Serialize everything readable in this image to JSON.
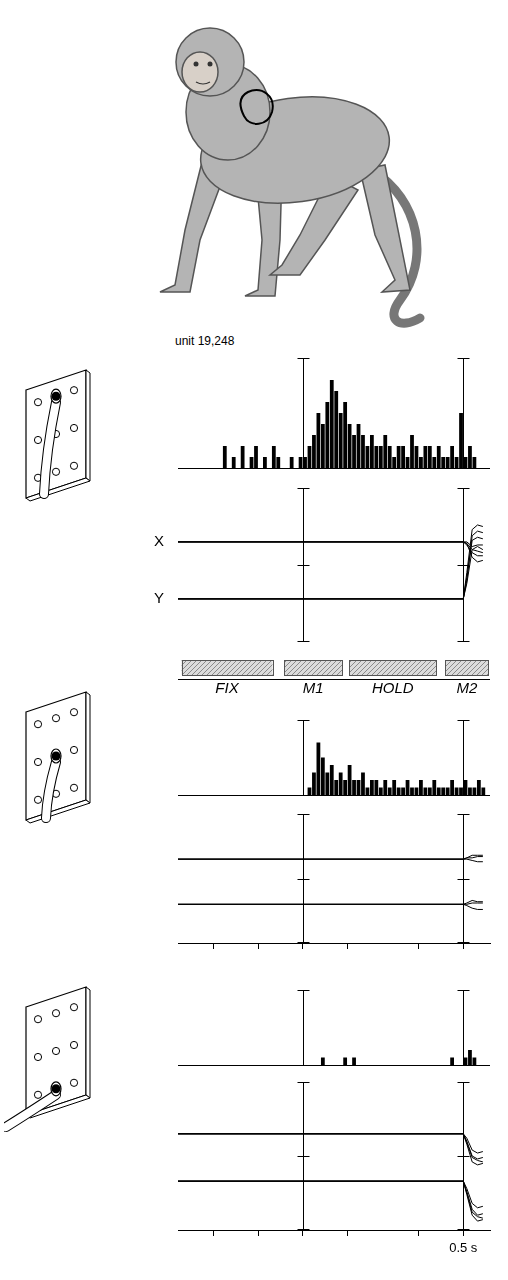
{
  "chart_data": [
    {
      "type": "histogram",
      "title": "unit 19,248",
      "bins": [
        -0.7,
        -0.675,
        -0.65,
        -0.625,
        -0.6,
        -0.575,
        -0.55,
        -0.525,
        -0.5,
        -0.475,
        -0.45,
        -0.425,
        -0.4,
        -0.375,
        -0.35,
        -0.325,
        -0.3,
        -0.275,
        -0.25,
        -0.225,
        -0.2,
        -0.175,
        -0.15,
        -0.125,
        -0.1,
        -0.075,
        -0.05,
        -0.025,
        0,
        0.025,
        0.05,
        0.075,
        0.1,
        0.125,
        0.15,
        0.175,
        0.2,
        0.225,
        0.25,
        0.275,
        0.3,
        0.325,
        0.35,
        0.375,
        0.4,
        0.425,
        0.45,
        0.475,
        0.5,
        0.525,
        0.55,
        0.575,
        0.6,
        0.625,
        0.65,
        0.675,
        0.7,
        0.725,
        0.75,
        0.775,
        0.8,
        0.825,
        0.85,
        0.875,
        0.9,
        0.925,
        0.95,
        0.975,
        1,
        1.025,
        1.05
      ],
      "values": [
        0,
        0,
        0,
        0,
        0,
        0,
        0,
        0,
        0,
        0,
        2,
        0,
        1,
        0,
        2,
        0,
        1,
        2,
        0,
        1,
        0,
        2,
        1,
        0,
        0,
        1,
        0,
        1,
        1,
        2,
        3,
        5,
        4,
        6,
        8,
        7,
        5,
        6,
        4,
        3,
        4,
        3,
        2,
        3,
        2,
        2,
        3,
        2,
        1,
        2,
        2,
        1,
        3,
        2,
        1,
        2,
        2,
        1,
        2,
        1,
        1,
        2,
        1,
        5,
        1,
        2,
        1,
        0,
        0,
        0
      ],
      "color": "#000000",
      "xlim": [
        -0.7,
        1.05
      ],
      "ylim": [
        0,
        10
      ],
      "events": [
        0,
        0.9
      ],
      "tick_labels": false
    },
    {
      "type": "line",
      "x": [
        -0.7,
        0.9,
        0.92,
        0.95,
        0.98,
        1.01
      ],
      "series": [
        {
          "name": "X",
          "color": "#000000",
          "trials": [
            [
              6.5,
              6.5,
              6.3,
              5.8,
              5.6,
              5.6
            ],
            [
              6.5,
              6.5,
              6.4,
              6.0,
              5.9,
              5.8
            ],
            [
              6.5,
              6.5,
              6.5,
              6.2,
              6.3,
              6.3
            ],
            [
              6.5,
              6.5,
              6.4,
              5.5,
              5.2,
              5.3
            ]
          ]
        },
        {
          "name": "Y",
          "color": "#000000",
          "trials": [
            [
              2.8,
              2.8,
              4.5,
              7.3,
              7.6,
              7.5
            ],
            [
              2.8,
              2.8,
              4.0,
              6.9,
              7.2,
              7.1
            ],
            [
              2.8,
              2.8,
              3.8,
              6.0,
              6.2,
              6.0
            ],
            [
              2.8,
              2.8,
              4.2,
              6.6,
              6.8,
              6.7
            ]
          ]
        }
      ],
      "xlim": [
        -0.7,
        1.05
      ],
      "ylim": [
        0,
        10
      ],
      "events": [
        0,
        0.9
      ],
      "tick_labels": false,
      "epochs": [
        {
          "label": "FIX",
          "start": -0.68,
          "end": -0.17
        },
        {
          "label": "M1",
          "start": -0.105,
          "end": 0.22
        },
        {
          "label": "HOLD",
          "start": 0.26,
          "end": 0.75
        },
        {
          "label": "M2",
          "start": 0.8,
          "end": 1.04
        }
      ]
    },
    {
      "type": "histogram",
      "bins": [
        -0.7,
        -0.675,
        -0.65,
        -0.625,
        -0.6,
        -0.575,
        -0.55,
        -0.525,
        -0.5,
        -0.475,
        -0.45,
        -0.425,
        -0.4,
        -0.375,
        -0.35,
        -0.325,
        -0.3,
        -0.275,
        -0.25,
        -0.225,
        -0.2,
        -0.175,
        -0.15,
        -0.125,
        -0.1,
        -0.075,
        -0.05,
        -0.025,
        0,
        0.025,
        0.05,
        0.075,
        0.1,
        0.125,
        0.15,
        0.175,
        0.2,
        0.225,
        0.25,
        0.275,
        0.3,
        0.325,
        0.35,
        0.375,
        0.4,
        0.425,
        0.45,
        0.475,
        0.5,
        0.525,
        0.55,
        0.575,
        0.6,
        0.625,
        0.65,
        0.675,
        0.7,
        0.725,
        0.75,
        0.775,
        0.8,
        0.825,
        0.85,
        0.875,
        0.9,
        0.925,
        0.95,
        0.975,
        1,
        1.025,
        1.05
      ],
      "values": [
        0,
        0,
        0,
        0,
        0,
        0,
        0,
        0,
        0,
        0,
        0,
        0,
        0,
        0,
        0,
        0,
        0,
        0,
        0,
        0,
        0,
        0,
        0,
        0,
        0,
        0,
        0,
        0,
        0,
        1,
        3,
        7,
        5,
        3,
        4,
        2,
        3,
        2,
        4,
        2,
        2,
        3,
        1,
        2,
        2,
        1,
        2,
        1,
        2,
        1,
        1,
        2,
        1,
        1,
        2,
        1,
        1,
        2,
        1,
        1,
        1,
        2,
        1,
        1,
        2,
        1,
        1,
        2,
        1,
        0
      ],
      "color": "#000000",
      "xlim": [
        -0.7,
        1.05
      ],
      "ylim": [
        0,
        10
      ],
      "events": [
        0,
        0.9
      ],
      "tick_labels": false
    },
    {
      "type": "line",
      "x": [
        -0.7,
        0.9,
        0.92,
        0.95,
        0.98,
        1.01
      ],
      "series": [
        {
          "color": "#000000",
          "trials": [
            [
              6.5,
              6.5,
              6.6,
              6.8,
              6.8,
              6.8
            ],
            [
              6.5,
              6.5,
              6.5,
              6.4,
              6.3,
              6.3
            ],
            [
              6.5,
              6.5,
              6.6,
              6.6,
              6.7,
              6.7
            ]
          ]
        },
        {
          "color": "#000000",
          "trials": [
            [
              3,
              3,
              3.1,
              3.3,
              3.2,
              3.2
            ],
            [
              3,
              3,
              2.9,
              2.7,
              2.6,
              2.6
            ],
            [
              3,
              3,
              3.0,
              3.1,
              3.1,
              3.1
            ]
          ]
        }
      ],
      "xlim": [
        -0.7,
        1.05
      ],
      "ylim": [
        0,
        10
      ],
      "xticks": [
        -0.5,
        -0.25,
        0,
        0.25,
        0.65,
        0.9
      ],
      "events": [
        0,
        0.9
      ],
      "tick_labels": false
    },
    {
      "type": "histogram",
      "bins": [
        -0.7,
        -0.675,
        -0.65,
        -0.625,
        -0.6,
        -0.575,
        -0.55,
        -0.525,
        -0.5,
        -0.475,
        -0.45,
        -0.425,
        -0.4,
        -0.375,
        -0.35,
        -0.325,
        -0.3,
        -0.275,
        -0.25,
        -0.225,
        -0.2,
        -0.175,
        -0.15,
        -0.125,
        -0.1,
        -0.075,
        -0.05,
        -0.025,
        0,
        0.025,
        0.05,
        0.075,
        0.1,
        0.125,
        0.15,
        0.175,
        0.2,
        0.225,
        0.25,
        0.275,
        0.3,
        0.325,
        0.35,
        0.375,
        0.4,
        0.425,
        0.45,
        0.475,
        0.5,
        0.525,
        0.55,
        0.575,
        0.6,
        0.625,
        0.65,
        0.675,
        0.7,
        0.725,
        0.75,
        0.775,
        0.8,
        0.825,
        0.85,
        0.875,
        0.9,
        0.925,
        0.95,
        0.975,
        1,
        1.025,
        1.05
      ],
      "values": [
        0,
        0,
        0,
        0,
        0,
        0,
        0,
        0,
        0,
        0,
        0,
        0,
        0,
        0,
        0,
        0,
        0,
        0,
        0,
        0,
        0,
        0,
        0,
        0,
        0,
        0,
        0,
        0,
        0,
        0,
        0,
        0,
        1,
        0,
        0,
        0,
        0,
        1,
        0,
        1,
        0,
        0,
        0,
        0,
        0,
        0,
        0,
        0,
        0,
        0,
        0,
        0,
        0,
        0,
        0,
        0,
        0,
        0,
        0,
        0,
        0,
        1,
        0,
        0,
        1,
        2,
        1,
        0,
        0,
        0
      ],
      "color": "#000000",
      "xlim": [
        -0.7,
        1.05
      ],
      "ylim": [
        0,
        10
      ],
      "events": [
        0,
        0.9
      ],
      "tick_labels": false
    },
    {
      "type": "line",
      "x": [
        -0.7,
        0.9,
        0.92,
        0.95,
        0.98,
        1.01
      ],
      "series": [
        {
          "color": "#000000",
          "trials": [
            [
              6.5,
              6.5,
              6.0,
              5.0,
              4.8,
              4.9
            ],
            [
              6.5,
              6.5,
              5.8,
              4.6,
              4.4,
              4.5
            ],
            [
              6.5,
              6.5,
              6.2,
              5.4,
              5.2,
              5.3
            ],
            [
              6.5,
              6.5,
              5.9,
              4.9,
              4.7,
              4.6
            ]
          ]
        },
        {
          "color": "#000000",
          "trials": [
            [
              3.3,
              3.3,
              2.6,
              1.4,
              1.0,
              1.1
            ],
            [
              3.3,
              3.3,
              2.4,
              1.0,
              0.6,
              0.7
            ],
            [
              3.3,
              3.3,
              2.8,
              1.8,
              1.5,
              1.6
            ],
            [
              3.3,
              3.3,
              2.5,
              1.2,
              0.9,
              0.8
            ]
          ]
        }
      ],
      "xlim": [
        -0.7,
        1.05
      ],
      "ylim": [
        0,
        10
      ],
      "xticks": [
        -0.5,
        -0.25,
        0,
        0.25,
        0.65,
        0.9
      ],
      "events": [
        0,
        0.9
      ],
      "tick_labels": false,
      "annotation": "0.5 s"
    }
  ]
}
